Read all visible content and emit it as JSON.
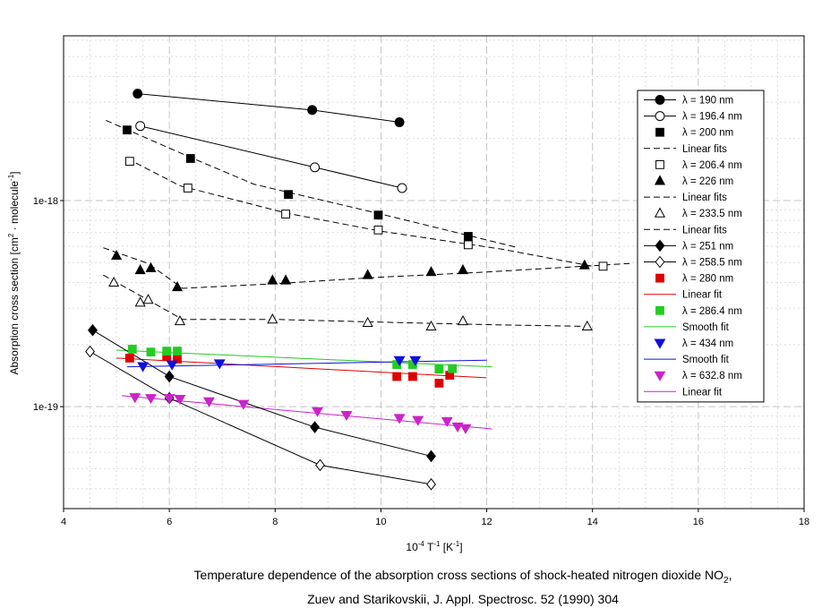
{
  "chart_data": {
    "type": "scatter",
    "xlabel": "10^-4 T^-1 [K^-1]",
    "xlabel_parts": {
      "pre": "10",
      "sup1": "-4",
      "mid": " T",
      "sup2": "-1",
      "post": " [K",
      "sup3": "-1",
      "end": "]"
    },
    "ylabel_parts": {
      "pre": "Absorption cross section [cm",
      "sup1": "2",
      "mid": " · molecule",
      "sup2": "-1",
      "end": "]"
    },
    "xlim": [
      4,
      18
    ],
    "ylim": [
      3.2e-20,
      6.3e-18
    ],
    "y_scale": "log",
    "x_ticks": [
      4,
      6,
      8,
      10,
      12,
      14,
      16,
      18
    ],
    "x_tick_labels": [
      "4",
      "6",
      "8",
      "10",
      "12",
      "14",
      "16",
      "18"
    ],
    "y_ticks": [
      1e-19,
      1e-18
    ],
    "y_tick_labels": [
      "1e-19",
      "1e-18"
    ],
    "grid": true,
    "legend_position": "right",
    "series": [
      {
        "name": "λ = 190 nm",
        "marker": "circle-filled",
        "color": "#000000",
        "line": "solid",
        "x": [
          5.4,
          8.7,
          10.35
        ],
        "y": [
          3.3e-18,
          2.75e-18,
          2.4e-18
        ]
      },
      {
        "name": "λ = 196.4 nm",
        "marker": "circle-open",
        "color": "#000000",
        "line": "solid",
        "x": [
          5.45,
          8.75,
          10.4
        ],
        "y": [
          2.3e-18,
          1.45e-18,
          1.15e-18
        ]
      },
      {
        "name": "λ = 200 nm",
        "marker": "square-filled",
        "color": "#000000",
        "line": "none",
        "x": [
          5.2,
          6.4,
          8.25,
          9.95,
          11.65
        ],
        "y": [
          2.2e-18,
          1.6e-18,
          1.07e-18,
          8.5e-19,
          6.7e-19
        ]
      },
      {
        "name": "Linear fits",
        "marker": "none",
        "color": "#000000",
        "line": "dashed",
        "legend_only": true
      },
      {
        "name": "λ = 206.4 nm",
        "marker": "square-open",
        "color": "#000000",
        "line": "none",
        "x": [
          5.25,
          6.35,
          8.2,
          9.95,
          11.65,
          14.2
        ],
        "y": [
          1.55e-18,
          1.15e-18,
          8.6e-19,
          7.2e-19,
          6.1e-19,
          4.8e-19
        ]
      },
      {
        "name": "λ = 226 nm",
        "marker": "triangle-up-filled",
        "color": "#000000",
        "line": "none",
        "x": [
          5.0,
          5.45,
          5.65,
          6.15,
          7.95,
          8.2,
          9.75,
          10.95,
          11.55,
          13.85
        ],
        "y": [
          5.4e-19,
          4.6e-19,
          4.7e-19,
          3.8e-19,
          4.1e-19,
          4.1e-19,
          4.35e-19,
          4.5e-19,
          4.6e-19,
          4.85e-19
        ]
      },
      {
        "name": "Linear fits",
        "marker": "none",
        "color": "#000000",
        "line": "dashed",
        "legend_only": true
      },
      {
        "name": "λ = 233.5 nm",
        "marker": "triangle-up-open",
        "color": "#000000",
        "line": "none",
        "x": [
          4.95,
          5.45,
          5.6,
          6.2,
          7.95,
          9.75,
          10.95,
          11.55,
          13.9
        ],
        "y": [
          4e-19,
          3.2e-19,
          3.3e-19,
          2.6e-19,
          2.65e-19,
          2.55e-19,
          2.45e-19,
          2.6e-19,
          2.45e-19
        ]
      },
      {
        "name": "Linear fits",
        "marker": "none",
        "color": "#000000",
        "line": "dashed",
        "legend_only": true
      },
      {
        "name": "λ = 251 nm",
        "marker": "diamond-filled",
        "color": "#000000",
        "line": "solid",
        "x": [
          4.55,
          6.0,
          8.75,
          10.95
        ],
        "y": [
          2.35e-19,
          1.4e-19,
          7.95e-20,
          5.75e-20
        ]
      },
      {
        "name": "λ = 258.5 nm",
        "marker": "diamond-open",
        "color": "#000000",
        "line": "solid",
        "x": [
          4.5,
          6.0,
          8.85,
          10.95
        ],
        "y": [
          1.85e-19,
          1.1e-19,
          5.2e-20,
          4.2e-20
        ]
      },
      {
        "name": "λ = 280 nm",
        "marker": "square-filled",
        "color": "#dd0000",
        "line": "none",
        "x": [
          5.25,
          5.95,
          6.15,
          10.3,
          10.6,
          11.1,
          11.3
        ],
        "y": [
          1.72e-19,
          1.75e-19,
          1.7e-19,
          1.4e-19,
          1.4e-19,
          1.3e-19,
          1.42e-19
        ]
      },
      {
        "name": "Linear fit",
        "marker": "none",
        "color": "#dd0000",
        "line": "solid",
        "legend_only": true
      },
      {
        "name": "λ = 286.4 nm",
        "marker": "square-filled",
        "color": "#22cc22",
        "line": "none",
        "x": [
          5.3,
          5.65,
          5.95,
          6.15,
          10.3,
          10.6,
          11.1,
          11.35
        ],
        "y": [
          1.9e-19,
          1.84e-19,
          1.86e-19,
          1.86e-19,
          1.6e-19,
          1.6e-19,
          1.52e-19,
          1.53e-19
        ]
      },
      {
        "name": "Smooth fit",
        "marker": "none",
        "color": "#22cc22",
        "line": "solid",
        "legend_only": true
      },
      {
        "name": "λ = 434 nm",
        "marker": "triangle-down-filled",
        "color": "#1010dd",
        "line": "none",
        "x": [
          5.5,
          6.05,
          6.95,
          10.35,
          10.65
        ],
        "y": [
          1.57e-19,
          1.6e-19,
          1.62e-19,
          1.68e-19,
          1.68e-19
        ]
      },
      {
        "name": "Smooth fit",
        "marker": "none",
        "color": "#1010dd",
        "line": "solid",
        "legend_only": true
      },
      {
        "name": "λ = 632.8 nm",
        "marker": "triangle-down-filled",
        "color": "#cc22cc",
        "line": "none",
        "x": [
          5.35,
          5.65,
          6.0,
          6.2,
          6.75,
          7.4,
          8.8,
          9.35,
          10.35,
          10.7,
          11.25,
          11.45,
          11.6
        ],
        "y": [
          1.11e-19,
          1.1e-19,
          1.1e-19,
          1.09e-19,
          1.06e-19,
          1.03e-19,
          9.5e-20,
          9.1e-20,
          8.8e-20,
          8.6e-20,
          8.5e-20,
          8e-20,
          7.85e-20
        ]
      },
      {
        "name": "Linear fit",
        "marker": "none",
        "color": "#cc22cc",
        "line": "solid",
        "legend_only": true
      }
    ],
    "fits": [
      {
        "of": "λ = 200 nm",
        "color": "#000000",
        "dash": "dashed",
        "x": [
          4.8,
          6.4,
          7.6,
          10.0,
          12.6
        ],
        "y": [
          2.45e-18,
          1.62e-18,
          1.2e-18,
          8.6e-19,
          5.9e-19
        ]
      },
      {
        "of": "λ = 206.4 nm",
        "color": "#000000",
        "dash": "dashed",
        "x": [
          5.2,
          6.2,
          8.2,
          10.0,
          12.3,
          14.0
        ],
        "y": [
          1.6e-18,
          1.18e-18,
          8.7e-19,
          7.1e-19,
          5.8e-19,
          4.8e-19
        ]
      },
      {
        "of": "λ = 226 nm",
        "color": "#000000",
        "dash": "dashed",
        "x": [
          4.75,
          5.6,
          6.25,
          8.0,
          10.0,
          12.0,
          14.7
        ],
        "y": [
          5.9e-19,
          4.95e-19,
          3.75e-19,
          3.95e-19,
          4.25e-19,
          4.5e-19,
          4.95e-19
        ]
      },
      {
        "of": "λ = 233.5 nm",
        "color": "#000000",
        "dash": "dashed",
        "x": [
          4.75,
          5.5,
          6.25,
          8.0,
          10.0,
          12.0,
          14.0
        ],
        "y": [
          4.35e-19,
          3.4e-19,
          2.65e-19,
          2.65e-19,
          2.57e-19,
          2.5e-19,
          2.45e-19
        ]
      },
      {
        "of": "λ = 280 nm",
        "color": "#dd0000",
        "dash": "solid",
        "x": [
          5.0,
          12.0
        ],
        "y": [
          1.72e-19,
          1.38e-19
        ]
      },
      {
        "of": "λ = 286.4 nm",
        "color": "#22cc22",
        "dash": "solid",
        "x": [
          5.0,
          12.1
        ],
        "y": [
          1.88e-19,
          1.56e-19
        ]
      },
      {
        "of": "λ = 434 nm",
        "color": "#1010dd",
        "dash": "solid",
        "x": [
          5.2,
          12.0
        ],
        "y": [
          1.56e-19,
          1.68e-19
        ]
      },
      {
        "of": "λ = 632.8 nm",
        "color": "#cc22cc",
        "dash": "solid",
        "x": [
          5.1,
          12.1
        ],
        "y": [
          1.13e-19,
          7.8e-20
        ]
      }
    ]
  },
  "caption": {
    "line1_pre": "Temperature dependence of the absorption cross sections of shock-heated nitrogen dioxide NO",
    "line1_sub": "2",
    "line1_post": ",",
    "line2": "Zuev and Starikovskii, J. Appl. Spectrosc. 52 (1990) 304"
  }
}
